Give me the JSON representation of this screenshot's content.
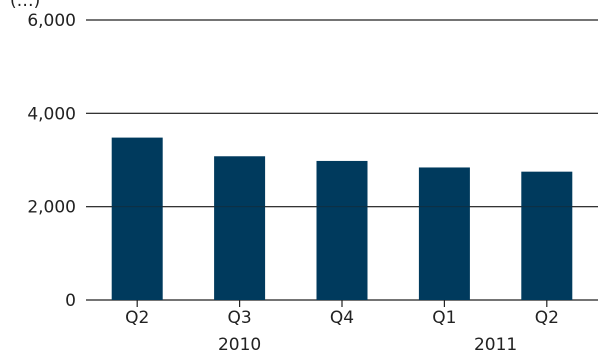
{
  "chart_data": {
    "type": "bar",
    "ylabel_partial": "(…)",
    "y_ticks": [
      0,
      2000,
      4000,
      6000
    ],
    "y_tick_labels": [
      "0",
      "2,000",
      "4,000",
      "6,000"
    ],
    "ylim": [
      0,
      6000
    ],
    "categories": [
      "Q2",
      "Q3",
      "Q4",
      "Q1",
      "Q2"
    ],
    "values": [
      3480,
      3080,
      2980,
      2840,
      2750
    ],
    "year_groups": [
      {
        "label": "2010",
        "start": 0,
        "end": 2
      },
      {
        "label": "2011",
        "start": 3,
        "end": 4
      }
    ],
    "grid": true,
    "bar_color": "#003a5d"
  }
}
